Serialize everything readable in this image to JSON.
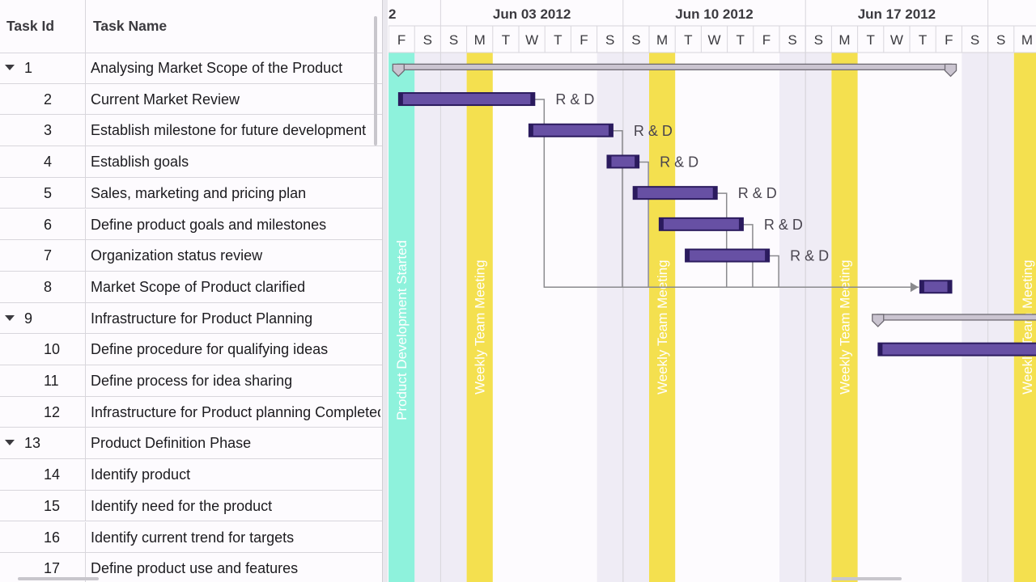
{
  "grid": {
    "columns": {
      "task_id": "Task Id",
      "task_name": "Task Name"
    },
    "rows": [
      {
        "id": "1",
        "name": "Analysing Market Scope of the Product",
        "parent": true
      },
      {
        "id": "2",
        "name": "Current Market Review"
      },
      {
        "id": "3",
        "name": "Establish milestone for future development"
      },
      {
        "id": "4",
        "name": "Establish goals"
      },
      {
        "id": "5",
        "name": "Sales, marketing and pricing plan"
      },
      {
        "id": "6",
        "name": "Define product goals and milestones"
      },
      {
        "id": "7",
        "name": "Organization status review"
      },
      {
        "id": "8",
        "name": "Market Scope of Product clarified"
      },
      {
        "id": "9",
        "name": "Infrastructure for Product Planning",
        "parent": true
      },
      {
        "id": "10",
        "name": "Define procedure for qualifying ideas"
      },
      {
        "id": "11",
        "name": "Define process for idea sharing"
      },
      {
        "id": "12",
        "name": "Infrastructure for Product planning Completed"
      },
      {
        "id": "13",
        "name": "Product Definition Phase",
        "parent": true
      },
      {
        "id": "14",
        "name": "Identify product"
      },
      {
        "id": "15",
        "name": "Identify need for the product"
      },
      {
        "id": "16",
        "name": "Identify current trend for targets"
      },
      {
        "id": "17",
        "name": "Define product use and features"
      }
    ]
  },
  "timeline": {
    "first_week_label_partial": "2",
    "weeks": [
      "Jun 03 2012",
      "Jun 10 2012",
      "Jun 17 2012"
    ],
    "days": [
      "F",
      "S",
      "S",
      "M",
      "T",
      "W",
      "T",
      "F",
      "S",
      "S",
      "M",
      "T",
      "W",
      "T",
      "F",
      "S",
      "S",
      "M",
      "T",
      "W",
      "T",
      "F",
      "S",
      "S",
      "M"
    ]
  },
  "event_markers": [
    {
      "day_index": 0,
      "label": "Product Development Started",
      "color": "#8ef2dc"
    },
    {
      "day_index": 3,
      "label": "Weekly Team Meeting",
      "color": "#f4e04f"
    },
    {
      "day_index": 10,
      "label": "Weekly Team Meeting",
      "color": "#f4e04f"
    },
    {
      "day_index": 17,
      "label": "Weekly Team Meeting",
      "color": "#f4e04f"
    },
    {
      "day_index": 24,
      "label": "Weekly Team Meeting",
      "color": "#f4e04f"
    }
  ],
  "tasks": [
    {
      "row": 0,
      "type": "summary",
      "start": 0.35,
      "end": 21.6
    },
    {
      "row": 1,
      "type": "task",
      "start": 0.4,
      "end": 5.6,
      "resource": "R & D"
    },
    {
      "row": 2,
      "type": "task",
      "start": 5.4,
      "end": 8.6,
      "resource": "R & D"
    },
    {
      "row": 3,
      "type": "task",
      "start": 8.4,
      "end": 9.6,
      "resource": "R & D"
    },
    {
      "row": 4,
      "type": "task",
      "start": 9.4,
      "end": 12.6,
      "resource": "R & D"
    },
    {
      "row": 5,
      "type": "task",
      "start": 10.4,
      "end": 13.6,
      "resource": "R & D"
    },
    {
      "row": 6,
      "type": "task",
      "start": 11.4,
      "end": 14.6,
      "resource": "R & D"
    },
    {
      "row": 7,
      "type": "task",
      "start": 20.4,
      "end": 21.6
    },
    {
      "row": 8,
      "type": "summary",
      "start": 18.75,
      "end": 26
    },
    {
      "row": 9,
      "type": "task",
      "start": 18.8,
      "end": 26
    }
  ],
  "dependencies": [
    {
      "from": 1,
      "to": 7
    },
    {
      "from": 2,
      "to": 7
    },
    {
      "from": 3,
      "to": 7
    },
    {
      "from": 4,
      "to": 7
    },
    {
      "from": 5,
      "to": 7
    },
    {
      "from": 6,
      "to": 7
    }
  ],
  "colors": {
    "task_bar": "#6750a4",
    "task_bar_border": "#2b1b5e",
    "summary_bar": "#cac4d0",
    "weekend": "#efecf5",
    "line": "#8a8a8e"
  }
}
